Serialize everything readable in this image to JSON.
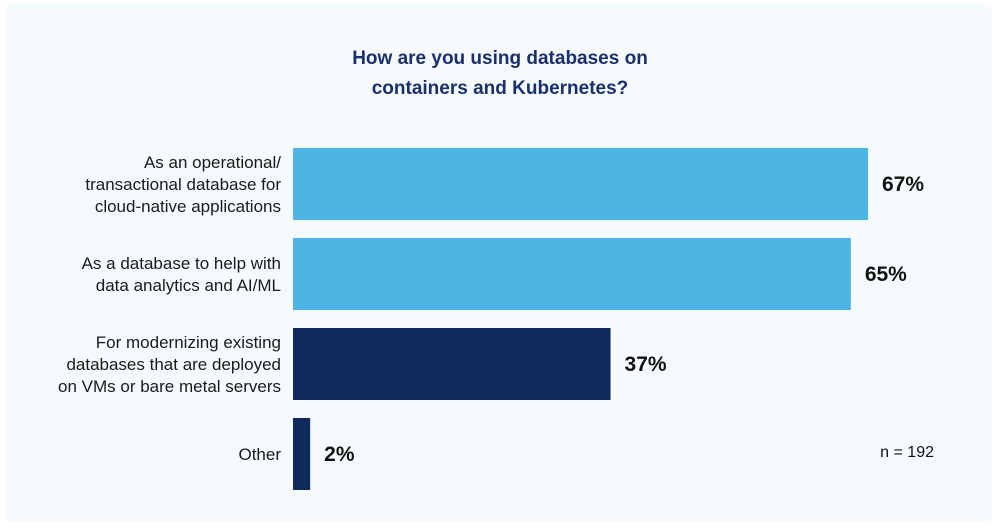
{
  "chart_data": {
    "type": "bar",
    "orientation": "horizontal",
    "title_lines": [
      "How are you using databases on",
      "containers and Kubernetes?"
    ],
    "categories": [
      [
        "As an operational/",
        "transactional database for",
        "cloud-native applications"
      ],
      [
        "As a database to help with",
        "data analytics and AI/ML"
      ],
      [
        "For modernizing existing",
        "databases that are deployed",
        "on VMs or bare metal servers"
      ],
      [
        "Other"
      ]
    ],
    "values": [
      67,
      65,
      37,
      2
    ],
    "value_labels": [
      "67%",
      "65%",
      "37%",
      "2%"
    ],
    "colors": [
      "#4db5e4",
      "#4db5e4",
      "#102a5c",
      "#102a5c"
    ],
    "xlim": [
      0,
      100
    ],
    "xlabel": "",
    "ylabel": "",
    "grid": false,
    "legend": "none"
  },
  "note": "n = 192"
}
